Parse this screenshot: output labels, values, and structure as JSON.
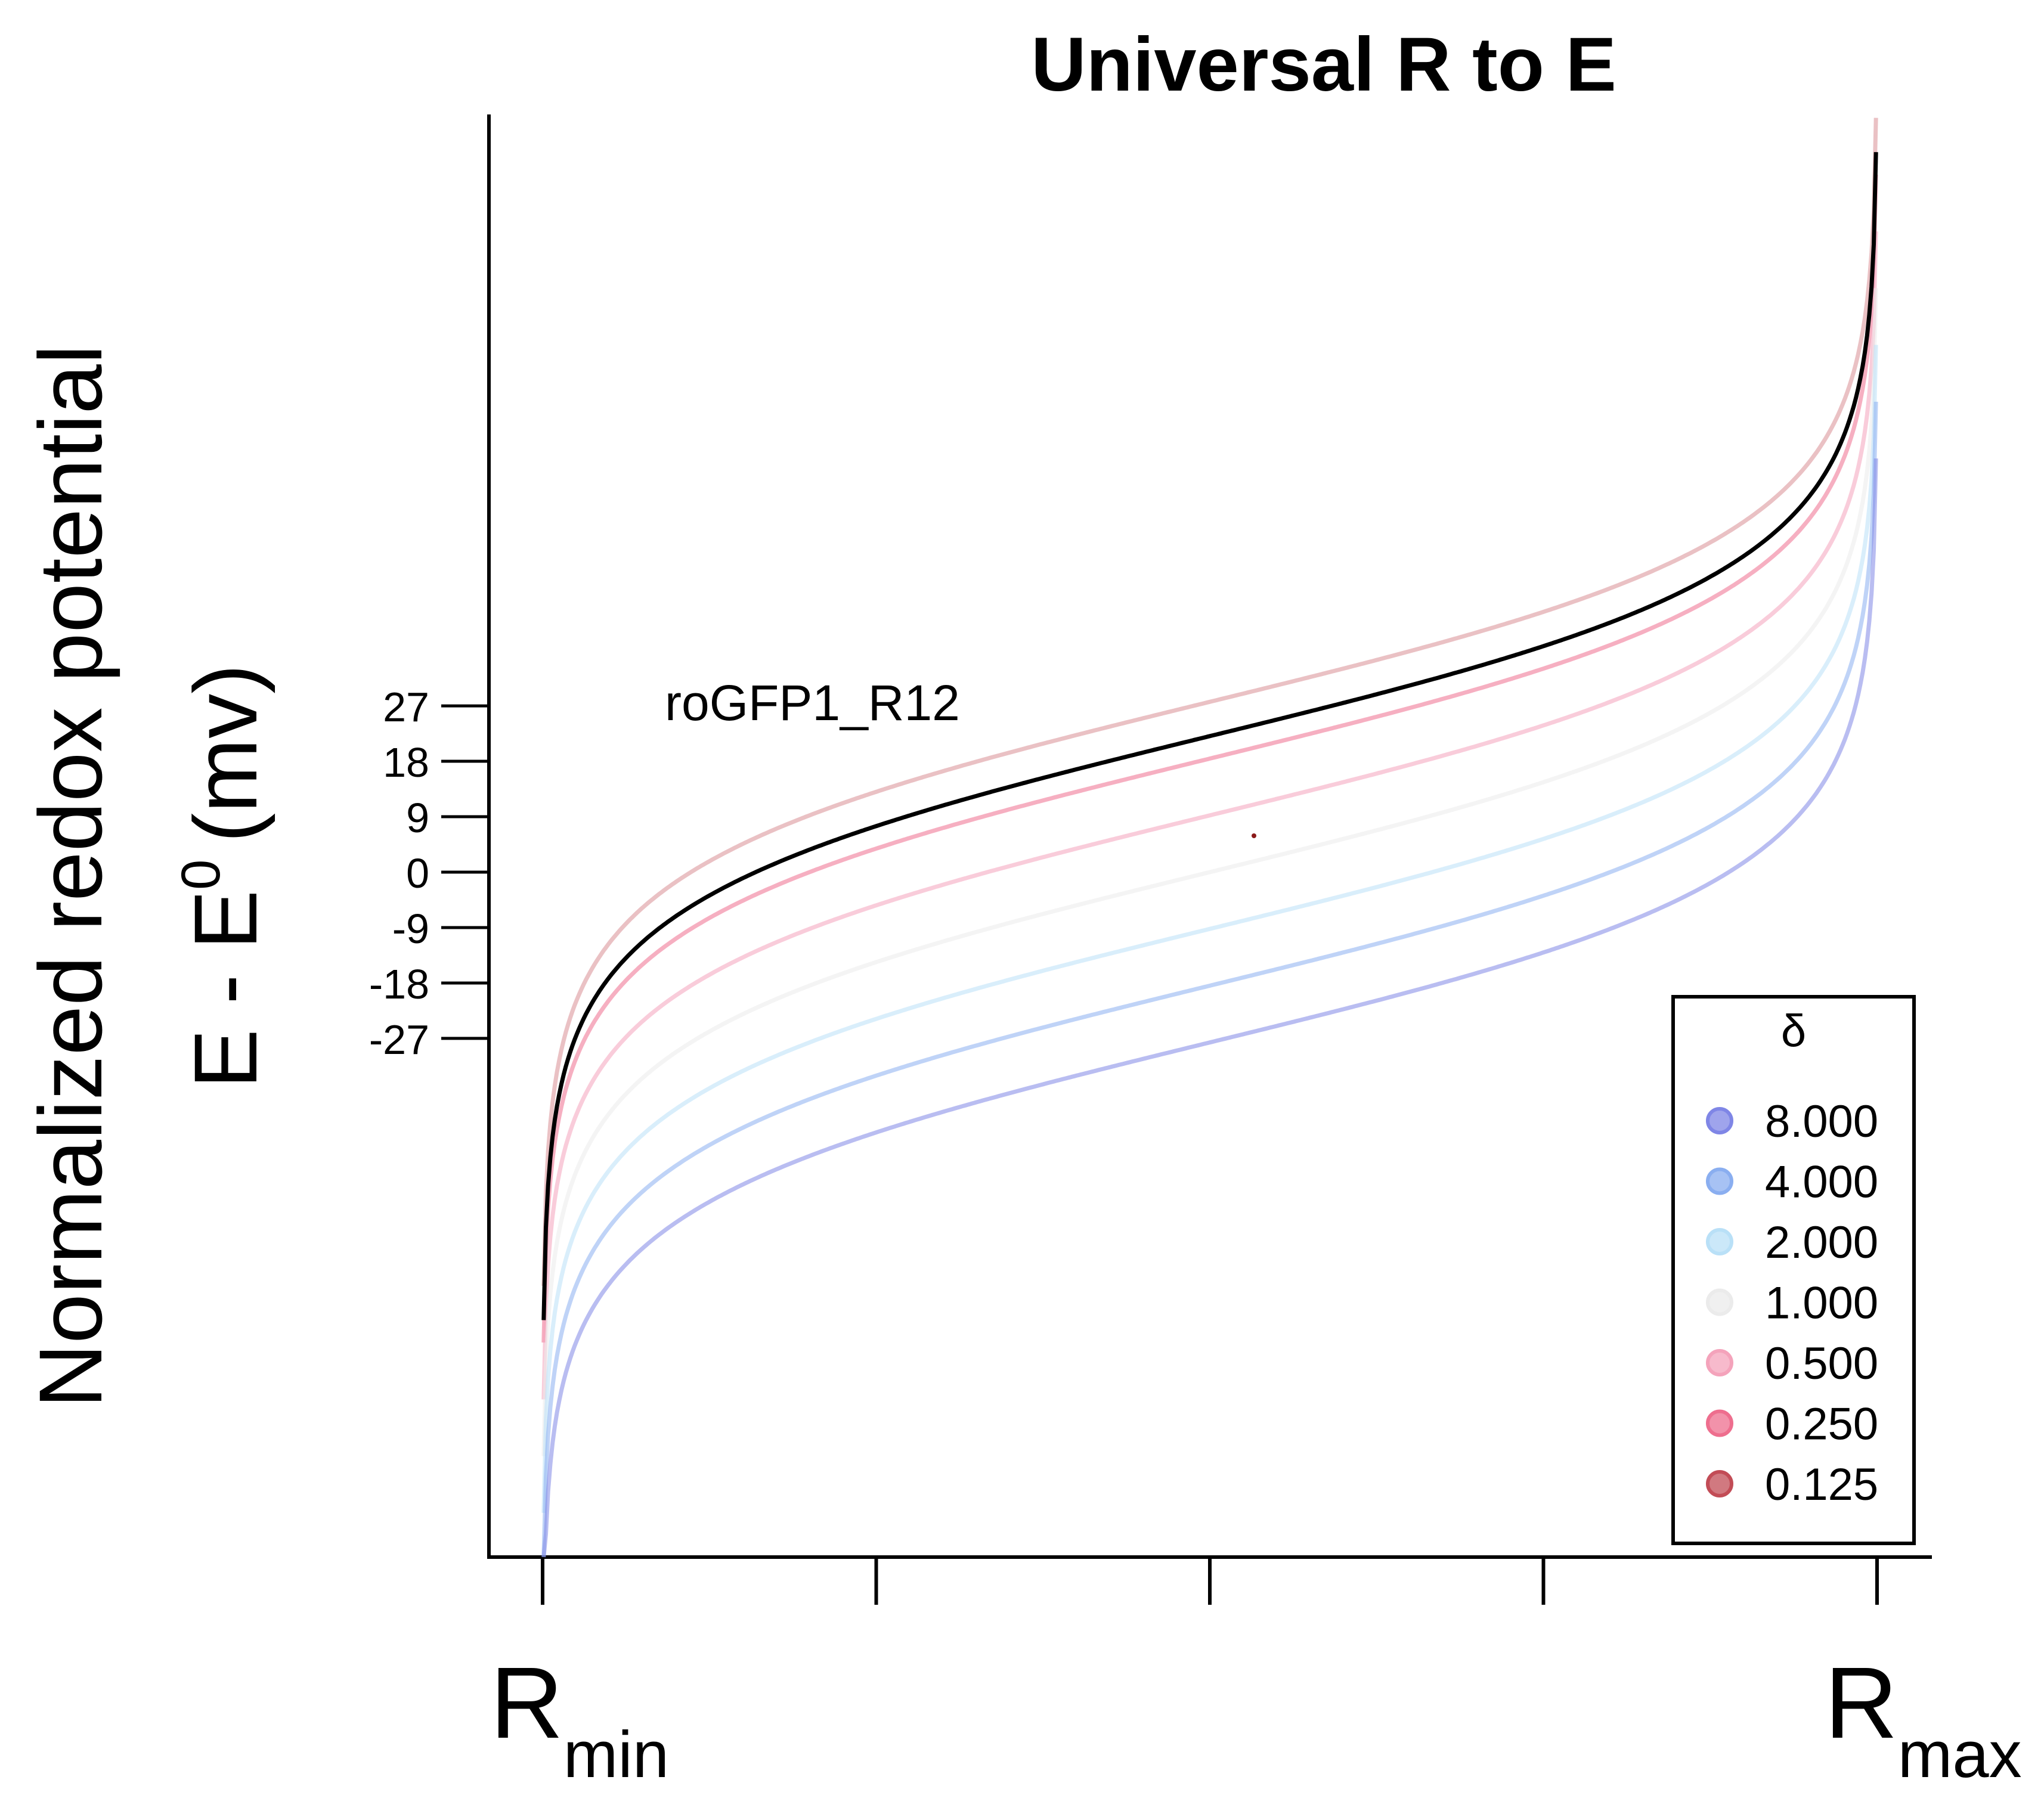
{
  "chart_data": {
    "type": "line",
    "title": "Universal R to E",
    "ylabel_line1": "Normalized redox potential",
    "ylabel_line2_main": "E - E",
    "ylabel_line2_sup": "0",
    "ylabel_line2_unit": "(mv)",
    "x_tick_labels": [
      {
        "main": "R",
        "sub": "min"
      },
      {
        "main": "R",
        "sub": "max"
      }
    ],
    "yticks": [
      27,
      18,
      9,
      0,
      -9,
      -18,
      -27
    ],
    "ylim": [
      -100,
      100
    ],
    "annotation": "roGFP1_R12",
    "legend": {
      "title": "δ",
      "position": "bottom-right",
      "entries": [
        {
          "label": "8.000",
          "delta": 8,
          "color": "#7f86e6"
        },
        {
          "label": "4.000",
          "delta": 4,
          "color": "#8aaef0"
        },
        {
          "label": "2.000",
          "delta": 2,
          "color": "#b9e0f7"
        },
        {
          "label": "1.000",
          "delta": 1,
          "color": "#ebebeb"
        },
        {
          "label": "0.500",
          "delta": 0.5,
          "color": "#f4a3bb"
        },
        {
          "label": "0.250",
          "delta": 0.25,
          "color": "#ee6e8e"
        },
        {
          "label": "0.125",
          "delta": 0.125,
          "color": "#c24c56"
        }
      ]
    },
    "highlight_series": {
      "name": "roGFP1_R12",
      "color": "#000000"
    }
  }
}
